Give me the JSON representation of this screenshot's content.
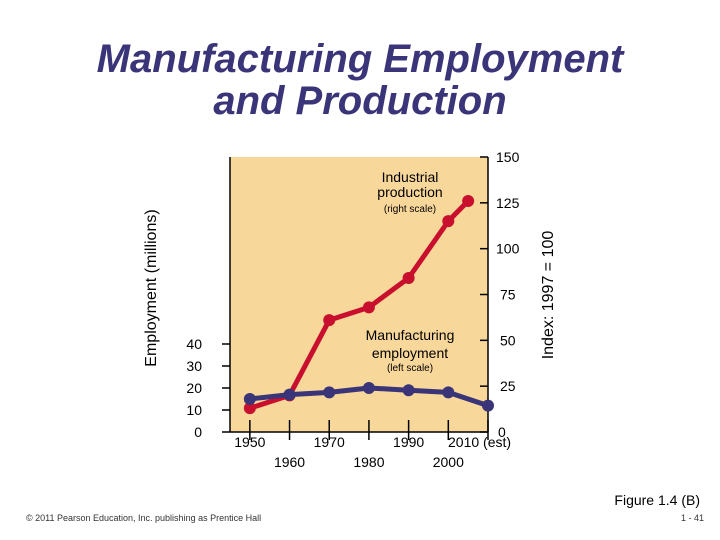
{
  "slide": {
    "title_line1": "Manufacturing Employment",
    "title_line2": "and Production",
    "figure_caption": "Figure 1.4 (B)",
    "copyright": "© 2011 Pearson Education, Inc. publishing as Prentice Hall",
    "page_number": "1 - 41"
  },
  "colors": {
    "plot_background": "#f8d79b",
    "production_line": "#c8102e",
    "employment_line": "#3a3478",
    "title": "#3a3478"
  },
  "chart_data": {
    "type": "line",
    "x_ticks_row1": [
      "1950",
      "1970",
      "1990",
      "2010 (est)"
    ],
    "x_ticks_row2": [
      "1960",
      "1980",
      "2000"
    ],
    "left_axis": {
      "label": "Employment (millions)",
      "ticks": [
        0,
        10,
        20,
        30,
        40
      ],
      "range": [
        0,
        40
      ]
    },
    "right_axis": {
      "label": "Index: 1997 = 100",
      "ticks": [
        0,
        25,
        50,
        75,
        100,
        125,
        150
      ],
      "range": [
        0,
        150
      ]
    },
    "series": [
      {
        "name": "Industrial production",
        "name_line1": "Industrial",
        "name_line2": "production",
        "scale_note": "(right scale)",
        "axis": "right",
        "points": [
          {
            "x": 1950,
            "y": 13
          },
          {
            "x": 1960,
            "y": 20
          },
          {
            "x": 1970,
            "y": 61
          },
          {
            "x": 1980,
            "y": 68
          },
          {
            "x": 1990,
            "y": 84
          },
          {
            "x": 2000,
            "y": 115
          },
          {
            "x": 2005,
            "y": 126
          }
        ]
      },
      {
        "name": "Manufacturing employment",
        "name_line1": "Manufacturing",
        "name_line2": "employment",
        "scale_note": "(left scale)",
        "axis": "left",
        "points": [
          {
            "x": 1950,
            "y": 15
          },
          {
            "x": 1960,
            "y": 17
          },
          {
            "x": 1970,
            "y": 18
          },
          {
            "x": 1980,
            "y": 20
          },
          {
            "x": 1990,
            "y": 19
          },
          {
            "x": 2000,
            "y": 18
          },
          {
            "x": 2010,
            "y": 12
          }
        ]
      }
    ]
  }
}
